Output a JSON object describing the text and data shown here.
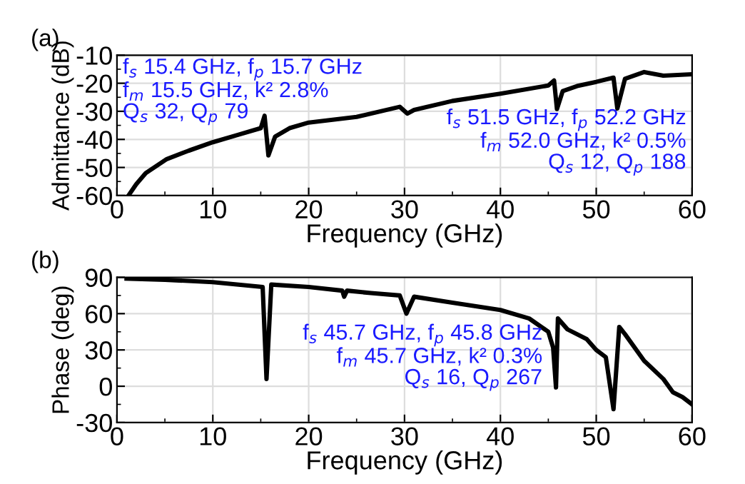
{
  "chart_data": [
    {
      "type": "line",
      "title": "(a)",
      "xlabel": "Frequency (GHz)",
      "ylabel": "Admittance (dB)",
      "xlim": [
        0,
        60
      ],
      "xticks": [
        0,
        10,
        20,
        30,
        40,
        50,
        60
      ],
      "ylim": [
        -60,
        -10
      ],
      "yticks": [
        -60,
        -50,
        -40,
        -30,
        -20,
        -10
      ],
      "grid": true,
      "series": [
        {
          "color": "#000000",
          "x": [
            1.2,
            2,
            3,
            5.2,
            7.5,
            10,
            12.5,
            15,
            15.4,
            15.8,
            16.5,
            18,
            20,
            25,
            29.5,
            30.3,
            31,
            35,
            40,
            45,
            45.6,
            45.9,
            46.5,
            48,
            50,
            51.8,
            52.2,
            53,
            55,
            57,
            60
          ],
          "values": [
            -60,
            -56,
            -52,
            -47,
            -44,
            -41,
            -38.5,
            -36,
            -31.6,
            -45.7,
            -39,
            -36,
            -34,
            -32,
            -28.4,
            -30.8,
            -29.5,
            -26.3,
            -23.7,
            -20.8,
            -19,
            -29.2,
            -22.8,
            -21,
            -19.5,
            -18,
            -29,
            -18.4,
            -16,
            -17.3,
            -16.8
          ]
        }
      ],
      "annotations": [
        "f$_{s}$ 15.4 GHz, f$_{p}$ 15.7 GHz\nf$_{m}$ 15.5 GHz, k² 2.8%\nQ$_{s}$ 32, Q$_{p}$ 79",
        "f$_{s}$ 51.5 GHz, f$_{p}$ 52.2 GHz\nf$_{m}$ 52.0 GHz, k² 0.5%\nQ$_{s}$ 12, Q$_{p}$ 188"
      ]
    },
    {
      "type": "line",
      "title": "(b)",
      "xlabel": "Frequency (GHz)",
      "ylabel": "Phase (deg)",
      "xlim": [
        0,
        60
      ],
      "xticks": [
        0,
        10,
        20,
        30,
        40,
        50,
        60
      ],
      "ylim": [
        -30,
        90
      ],
      "yticks": [
        -30,
        0,
        30,
        60,
        90
      ],
      "grid": true,
      "series": [
        {
          "color": "#000000",
          "x": [
            1,
            5,
            10,
            15.2,
            15.6,
            16.1,
            20,
            23.5,
            23.7,
            24,
            26.5,
            29.5,
            30.2,
            31,
            35,
            40,
            43,
            45,
            45.5,
            45.8,
            46,
            47,
            49,
            50,
            51,
            51.8,
            52.4,
            53,
            55,
            57,
            58,
            59,
            60
          ],
          "values": [
            89,
            88,
            86,
            82,
            6,
            84,
            82,
            79,
            74,
            79,
            77,
            75,
            60,
            74,
            69,
            63,
            56,
            45,
            32,
            -1,
            56,
            47,
            39,
            30,
            24,
            -19,
            49,
            43,
            21,
            6,
            -5,
            -9,
            -15
          ]
        }
      ],
      "annotations": [
        "f$_{s}$ 45.7 GHz, f$_{p}$ 45.8 GHz\nf$_{m}$ 45.7 GHz, k² 0.3%\nQ$_{s}$ 16, Q$_{p}$ 267"
      ]
    }
  ]
}
